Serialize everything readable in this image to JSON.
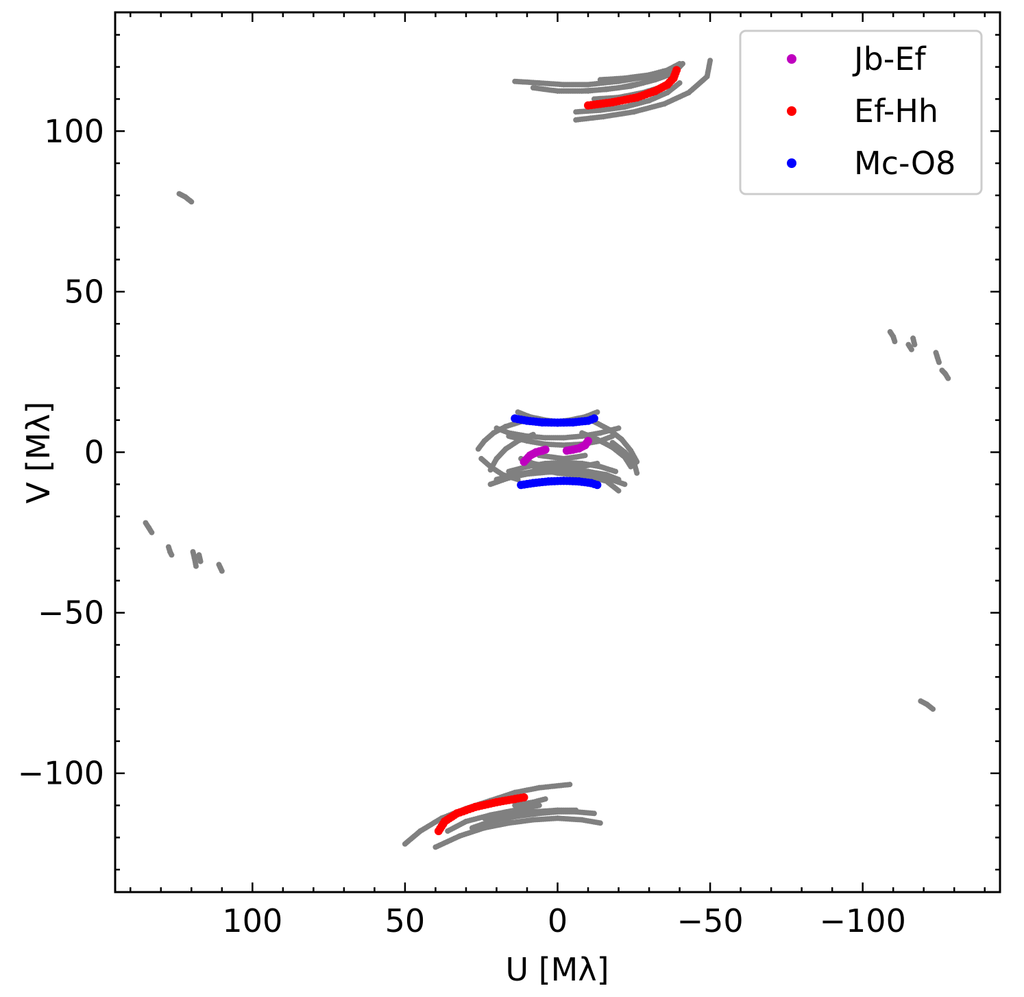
{
  "chart_data": {
    "type": "scatter",
    "title": "",
    "xlabel": "U [Mλ]",
    "ylabel": "V [Mλ]",
    "xlim": [
      145,
      -145
    ],
    "ylim": [
      -137,
      137
    ],
    "x_ticks": [
      100,
      50,
      0,
      -50,
      -100
    ],
    "x_tick_labels": [
      "100",
      "50",
      "0",
      "−50",
      "−100"
    ],
    "y_ticks": [
      100,
      50,
      0,
      -50,
      -100
    ],
    "y_tick_labels": [
      "100",
      "50",
      "0",
      "−50",
      "−100"
    ],
    "grid": false,
    "legend_position": "top-right",
    "series": [
      {
        "name": "Jb-Ef",
        "color": "#bf00bf",
        "arcs": [
          {
            "x": [
              11,
              9,
              7,
              5,
              4
            ],
            "y": [
              -3,
              -1,
              0,
              0.5,
              0.8
            ]
          },
          {
            "x": [
              -3,
              -5,
              -7,
              -9,
              -10
            ],
            "y": [
              0.5,
              0.8,
              1.2,
              2.2,
              3.5
            ]
          }
        ]
      },
      {
        "name": "Ef-Hh",
        "color": "#ff0000",
        "arcs": [
          {
            "x": [
              -10,
              -18,
              -26,
              -32,
              -36,
              -38,
              -39
            ],
            "y": [
              108,
              109,
              110.5,
              112.5,
              114.5,
              116.5,
              119
            ]
          },
          {
            "x": [
              39,
              37,
              33,
              27,
              20,
              14,
              11
            ],
            "y": [
              -118,
              -115,
              -112.5,
              -110.5,
              -109,
              -108,
              -107.5
            ]
          }
        ]
      },
      {
        "name": "Mc-O8",
        "color": "#0000ff",
        "arcs": [
          {
            "x": [
              14,
              10,
              5,
              0,
              -5,
              -10,
              -12
            ],
            "y": [
              10.5,
              9.8,
              9.3,
              9.2,
              9.3,
              9.8,
              10.5
            ]
          },
          {
            "x": [
              12,
              8,
              3,
              -2,
              -7,
              -11,
              -13
            ],
            "y": [
              -10.2,
              -9.6,
              -9.1,
              -8.9,
              -9.1,
              -9.6,
              -10.2
            ]
          }
        ]
      },
      {
        "name": "",
        "color": "#808080",
        "arcs": [
          {
            "x": [
              14,
              6,
              -2,
              -10,
              -20,
              -30,
              -40
            ],
            "y": [
              115.5,
              115,
              114.5,
              114.5,
              115.5,
              117,
              120
            ]
          },
          {
            "x": [
              0,
              -8,
              -16,
              -24,
              -32,
              -38,
              -41
            ],
            "y": [
              112.5,
              112.5,
              113,
              114,
              116,
              118,
              121
            ]
          },
          {
            "x": [
              -6,
              -14,
              -22,
              -30,
              -36,
              -40
            ],
            "y": [
              106,
              106.5,
              107.5,
              109.5,
              112,
              115
            ]
          },
          {
            "x": [
              -6,
              -15,
              -25,
              -35,
              -43,
              -49,
              -50
            ],
            "y": [
              103.5,
              104.5,
              106,
              108.5,
              112,
              117,
              122
            ]
          },
          {
            "x": [
              8,
              0,
              -10,
              -20,
              -28
            ],
            "y": [
              113.5,
              112.5,
              112.5,
              113.5,
              115
            ]
          },
          {
            "x": [
              -12,
              -20,
              -28,
              -35,
              -38
            ],
            "y": [
              110,
              110.5,
              112,
              114,
              116
            ]
          },
          {
            "x": [
              -14,
              -22,
              -30,
              -36,
              -40
            ],
            "y": [
              116,
              116.5,
              117.5,
              119,
              121
            ]
          },
          {
            "x": [
              50,
              45,
              38,
              30,
              22,
              14,
              6,
              -4
            ],
            "y": [
              -122,
              -118,
              -114,
              -111,
              -108.5,
              -106,
              -104.5,
              -103.5
            ]
          },
          {
            "x": [
              40,
              32,
              24,
              16,
              8,
              0,
              -8,
              -14
            ],
            "y": [
              -123,
              -119.5,
              -117,
              -115.5,
              -114.5,
              -114,
              -114.5,
              -115.5
            ]
          },
          {
            "x": [
              28,
              22,
              14,
              6,
              0,
              -6,
              -12
            ],
            "y": [
              -117,
              -115,
              -113.5,
              -112.5,
              -112,
              -112,
              -112.5
            ]
          },
          {
            "x": [
              36,
              30,
              22,
              14,
              6
            ],
            "y": [
              -118,
              -115,
              -113,
              -111.5,
              -110
            ]
          },
          {
            "x": [
              24,
              16,
              8,
              0,
              -6
            ],
            "y": [
              -114,
              -113,
              -112,
              -111.5,
              -111.5
            ]
          },
          {
            "x": [
              14,
              8,
              4
            ],
            "y": [
              -110,
              -109,
              -108
            ]
          },
          {
            "x": [
              135,
              134,
              133
            ],
            "y": [
              -22,
              -23.5,
              -25
            ]
          },
          {
            "x": [
              127.5,
              127,
              126.5
            ],
            "y": [
              -29.5,
              -31,
              -32
            ]
          },
          {
            "x": [
              119.5,
              119,
              118.5
            ],
            "y": [
              -31,
              -33,
              -35.5
            ]
          },
          {
            "x": [
              117.5,
              117
            ],
            "y": [
              -32,
              -34
            ]
          },
          {
            "x": [
              111,
              110.5,
              110
            ],
            "y": [
              -35,
              -36,
              -37
            ]
          },
          {
            "x": [
              124,
              122,
              120
            ],
            "y": [
              80.5,
              79.5,
              78
            ]
          },
          {
            "x": [
              -109,
              -110,
              -110.5
            ],
            "y": [
              37.5,
              36,
              34.5
            ]
          },
          {
            "x": [
              -115,
              -116
            ],
            "y": [
              33.5,
              32
            ]
          },
          {
            "x": [
              -116.5,
              -117
            ],
            "y": [
              35.5,
              33.5
            ]
          },
          {
            "x": [
              -124,
              -124.5,
              -125
            ],
            "y": [
              31,
              29.5,
              28
            ]
          },
          {
            "x": [
              -126,
              -127,
              -128
            ],
            "y": [
              25.5,
              24.5,
              23
            ]
          },
          {
            "x": [
              -119,
              -121,
              -123
            ],
            "y": [
              -77.5,
              -78.5,
              -80
            ]
          },
          {
            "x": [
              13,
              9,
              4,
              0,
              -4,
              -9,
              -13
            ],
            "y": [
              12.5,
              11,
              10,
              9.5,
              10,
              11,
              12.5
            ]
          },
          {
            "x": [
              20,
              16,
              10,
              4,
              -2,
              -8,
              -14,
              -20
            ],
            "y": [
              7.5,
              6,
              5,
              4.5,
              4.5,
              5,
              6,
              7.5
            ]
          },
          {
            "x": [
              16,
              10,
              4,
              -2,
              -8,
              -14,
              -18
            ],
            "y": [
              5,
              3.5,
              2.5,
              2.2,
              2.5,
              3.5,
              5
            ]
          },
          {
            "x": [
              22,
              20,
              17,
              13,
              8
            ],
            "y": [
              -5.5,
              -2,
              1,
              3.5,
              5.5
            ]
          },
          {
            "x": [
              26,
              24,
              21,
              17,
              12
            ],
            "y": [
              1,
              3.5,
              6,
              8,
              9.5
            ]
          },
          {
            "x": [
              -8,
              -13,
              -18,
              -22,
              -24
            ],
            "y": [
              6,
              4,
              1.5,
              -1.5,
              -4.5
            ]
          },
          {
            "x": [
              -12,
              -17,
              -21,
              -24,
              -26
            ],
            "y": [
              9.5,
              7,
              4,
              0.5,
              -3
            ]
          },
          {
            "x": [
              -18,
              -22,
              -25,
              -26
            ],
            "y": [
              3,
              0,
              -3,
              -6.5
            ]
          },
          {
            "x": [
              12,
              8,
              3,
              -2,
              -8,
              -13
            ],
            "y": [
              -2,
              -3.5,
              -4.5,
              -4.8,
              -4.5,
              -3.5
            ]
          },
          {
            "x": [
              16,
              10,
              4,
              -2,
              -8,
              -14,
              -19
            ],
            "y": [
              -6,
              -4.5,
              -3.5,
              -3.2,
              -3.5,
              -4.5,
              -6
            ]
          },
          {
            "x": [
              22,
              16,
              10,
              3,
              -4,
              -10,
              -16,
              -22
            ],
            "y": [
              -10,
              -8,
              -6.8,
              -6.2,
              -6.2,
              -6.8,
              -8,
              -10
            ]
          },
          {
            "x": [
              20,
              14,
              8,
              2,
              -4,
              -10,
              -16,
              -20
            ],
            "y": [
              -8.5,
              -7,
              -6,
              -5.5,
              -5.5,
              -6,
              -7,
              -8.5
            ]
          },
          {
            "x": [
              9,
              5,
              0,
              -5,
              -10,
              -16,
              -20
            ],
            "y": [
              -4,
              -5.5,
              -6.5,
              -7,
              -7.5,
              -9,
              -12
            ]
          },
          {
            "x": [
              25,
              22,
              18,
              13
            ],
            "y": [
              -2,
              -4.5,
              -7,
              -8.5
            ]
          },
          {
            "x": [
              6,
              2,
              -2,
              -6,
              -9
            ],
            "y": [
              -1,
              -1.5,
              -2,
              -1.5,
              -1
            ]
          }
        ]
      }
    ]
  }
}
